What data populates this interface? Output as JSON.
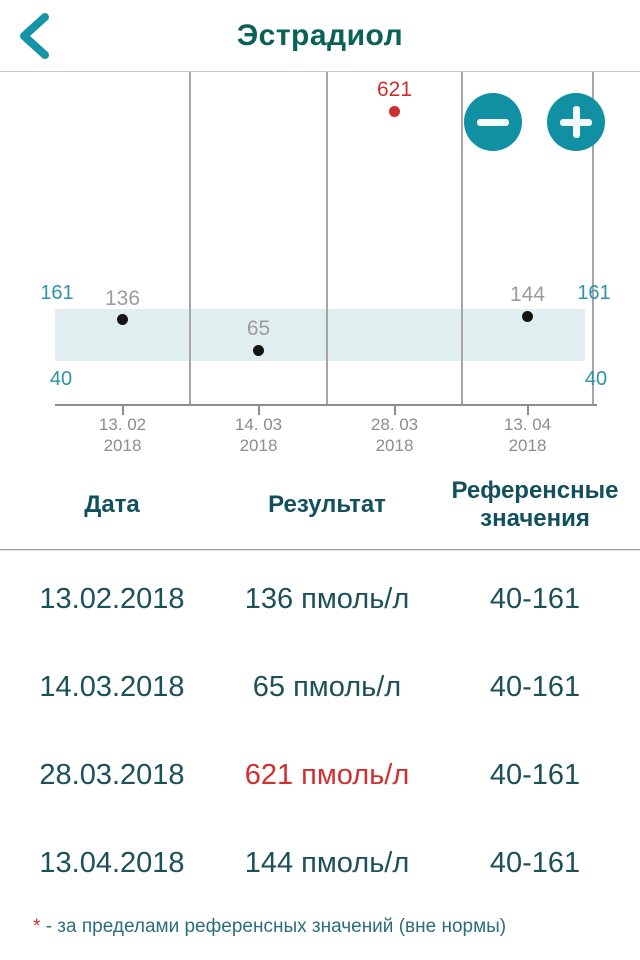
{
  "header": {
    "title": "Эстрадиол",
    "back_icon": "chevron-left"
  },
  "colors": {
    "accent_teal": "#1090a2",
    "title_teal": "#0a6156",
    "header_text": "#11505c",
    "row_text": "#1c5159",
    "footnote_text": "#2b6e7a",
    "out_of_range_red": "#cf2e2e",
    "band_fill": "#e1eef0",
    "gridline": "#a6a6a6",
    "axis": "#8d8d8d",
    "tick_text_gray": "#8d8d8d",
    "point_label_gray": "#9c9c9c",
    "dot_black": "#141414"
  },
  "chart_controls": {
    "zoom_out_icon": "minus",
    "zoom_in_icon": "plus"
  },
  "chart_data": {
    "type": "scatter",
    "title": "Эстрадиол",
    "unit": "пмоль/л",
    "x": [
      "13.02.2018",
      "14.03.2018",
      "28.03.2018",
      "13.04.2018"
    ],
    "x_tick_labels": [
      [
        "13. 02",
        "2018"
      ],
      [
        "14. 03",
        "2018"
      ],
      [
        "28. 03",
        "2018"
      ],
      [
        "13. 04",
        "2018"
      ]
    ],
    "values": [
      136,
      65,
      621,
      144
    ],
    "out_of_range": [
      false,
      false,
      true,
      false
    ],
    "reference_range": {
      "low": 40,
      "high": 161
    },
    "y_ticks": [
      40,
      161
    ],
    "y_tick_sides": "both",
    "grid": true,
    "legend": "none"
  },
  "table": {
    "headers": [
      "Дата",
      "Результат",
      "Референсные значения"
    ],
    "rows": [
      {
        "date": "13.02.2018",
        "result": "136 пмоль/л",
        "range": "40-161",
        "out_of_range": false
      },
      {
        "date": "14.03.2018",
        "result": "65 пмоль/л",
        "range": "40-161",
        "out_of_range": false
      },
      {
        "date": "28.03.2018",
        "result": "621 пмоль/л",
        "range": "40-161",
        "out_of_range": true
      },
      {
        "date": "13.04.2018",
        "result": "144 пмоль/л",
        "range": "40-161",
        "out_of_range": false
      }
    ]
  },
  "footnote": {
    "marker": "*",
    "text": "- за пределами референсных значений (вне нормы)"
  }
}
